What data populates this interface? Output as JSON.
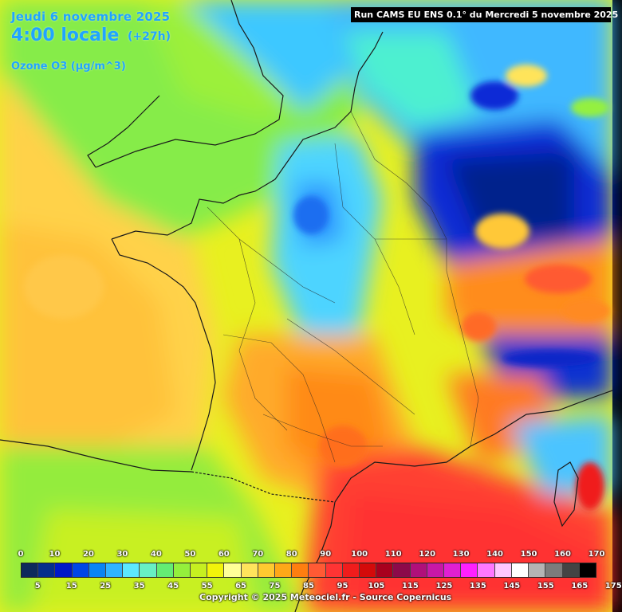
{
  "header": {
    "date": "Jeudi 6 novembre 2025",
    "time": "4:00 locale",
    "lead": "(+27h)",
    "variable": "Ozone O3 (µg/m^3)"
  },
  "run_label": "Run CAMS EU ENS 0.1° du Mercredi 5 novembre 2025",
  "legend": {
    "colors": [
      "#0d2a5c",
      "#062e8c",
      "#0018c8",
      "#0046e6",
      "#0a84f2",
      "#30b4ff",
      "#5ce8ff",
      "#68f0c4",
      "#64ec74",
      "#94f03c",
      "#c6f020",
      "#f2f40a",
      "#ffff98",
      "#ffe45c",
      "#ffca30",
      "#ffa818",
      "#ff7e10",
      "#ff5a34",
      "#ff3434",
      "#f01c1c",
      "#d40a0a",
      "#a8001e",
      "#8c0a4a",
      "#b0107a",
      "#c818a6",
      "#e020d2",
      "#ff20ff",
      "#ff78ff",
      "#ffc8ff",
      "#ffffff",
      "#b4b4b4",
      "#7c7c7c",
      "#444444",
      "#000000"
    ],
    "ticks_top": [
      "0",
      "10",
      "20",
      "30",
      "40",
      "50",
      "60",
      "70",
      "80",
      "90",
      "100",
      "110",
      "120",
      "130",
      "140",
      "150",
      "160",
      "170"
    ],
    "ticks_bottom": [
      "5",
      "15",
      "25",
      "35",
      "45",
      "55",
      "65",
      "75",
      "85",
      "95",
      "105",
      "115",
      "125",
      "135",
      "145",
      "155",
      "165",
      "175"
    ]
  },
  "footer": {
    "copyright": "Copyright © 2025 Meteociel.fr - Source Copernicus"
  }
}
